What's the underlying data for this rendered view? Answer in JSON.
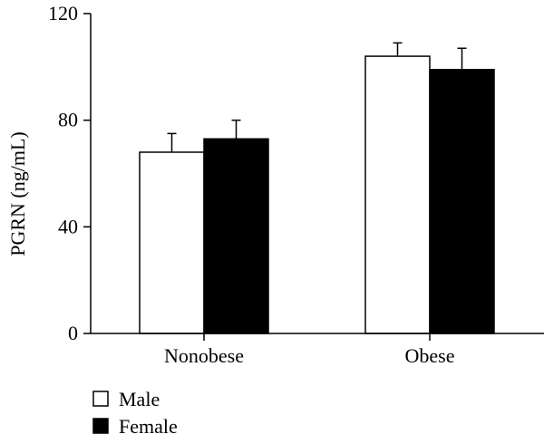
{
  "chart_data": {
    "type": "bar",
    "title": "",
    "xlabel": "",
    "ylabel": "PGRN (ng/mL)",
    "ylim": [
      0,
      120
    ],
    "yticks": [
      0,
      40,
      80,
      120
    ],
    "categories": [
      "Nonobese",
      "Obese"
    ],
    "series": [
      {
        "name": "Male",
        "fill": "#ffffff",
        "stroke": "#000000",
        "values": [
          68,
          104
        ],
        "errors": [
          7,
          5
        ]
      },
      {
        "name": "Female",
        "fill": "#000000",
        "stroke": "#000000",
        "values": [
          73,
          99
        ],
        "errors": [
          7,
          8
        ]
      }
    ],
    "legend": "bottom-left",
    "grid": false
  }
}
